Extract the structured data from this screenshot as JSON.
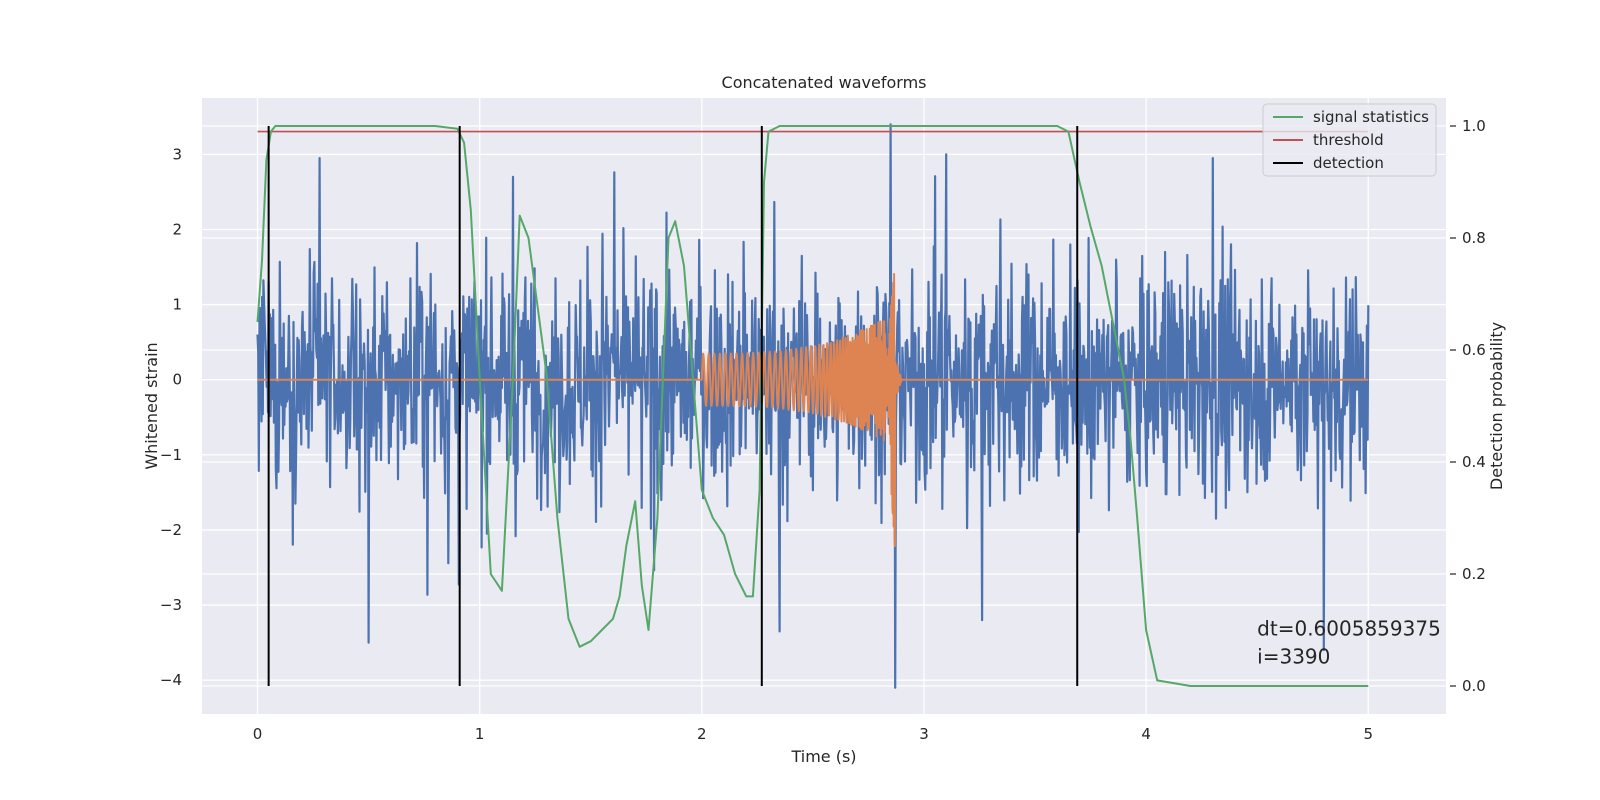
{
  "chart_data": {
    "type": "line",
    "title": "Concatenated waveforms",
    "xlabel": "Time (s)",
    "ylabel": "Whitened strain",
    "ylabel_right": "Detection probability",
    "xlim": [
      -0.25,
      5.35
    ],
    "ylim": [
      -4.45,
      3.75
    ],
    "ylim_right": [
      -0.05,
      1.05
    ],
    "x_ticks": [
      0,
      1,
      2,
      3,
      4,
      5
    ],
    "y_ticks": [
      -4,
      -3,
      -2,
      -1,
      0,
      1,
      2,
      3
    ],
    "y_ticks_right": [
      0.0,
      0.2,
      0.4,
      0.6,
      0.8,
      1.0
    ],
    "grid": true,
    "legend_position": "top-right",
    "legend": [
      {
        "name": "signal statistics",
        "color": "#55a868"
      },
      {
        "name": "threshold",
        "color": "#c44e52"
      },
      {
        "name": "detection",
        "color": "#000000"
      }
    ],
    "strain_noise": {
      "color": "#4c72b0",
      "x_range": [
        0,
        5
      ],
      "typical_amplitude": 1.0,
      "extremes": [
        {
          "x": 0.5,
          "y": -3.5
        },
        {
          "x": 2.85,
          "y": 3.4
        },
        {
          "x": 2.87,
          "y": -4.1
        },
        {
          "x": 2.35,
          "y": -3.35
        },
        {
          "x": 4.8,
          "y": -3.6
        },
        {
          "x": 1.15,
          "y": 2.7
        },
        {
          "x": 0.28,
          "y": 2.95
        },
        {
          "x": 3.1,
          "y": 3.0
        },
        {
          "x": 4.3,
          "y": 2.95
        }
      ]
    },
    "strain_signal": {
      "color": "#dd8452",
      "start": 2.0,
      "merger": 2.87,
      "end": 2.9,
      "amplitude_start": 0.35,
      "amplitude_peak_pos": 1.55,
      "amplitude_peak_neg": -2.25
    },
    "signal_statistics": {
      "color": "#55a868",
      "x": [
        0,
        0.02,
        0.04,
        0.06,
        0.08,
        0.1,
        0.2,
        0.5,
        0.8,
        0.9,
        0.93,
        0.96,
        1.0,
        1.05,
        1.1,
        1.15,
        1.18,
        1.22,
        1.3,
        1.35,
        1.4,
        1.45,
        1.5,
        1.55,
        1.6,
        1.63,
        1.66,
        1.7,
        1.73,
        1.76,
        1.8,
        1.85,
        1.88,
        1.92,
        1.96,
        2.0,
        2.05,
        2.1,
        2.15,
        2.2,
        2.23,
        2.26,
        2.28,
        2.3,
        2.35,
        2.5,
        3.0,
        3.6,
        3.65,
        3.7,
        3.75,
        3.8,
        3.85,
        3.9,
        3.93,
        3.96,
        4.0,
        4.05,
        4.2,
        4.5,
        5.0
      ],
      "y": [
        0.65,
        0.76,
        0.94,
        0.99,
        1.0,
        1.0,
        1.0,
        1.0,
        1.0,
        0.995,
        0.97,
        0.85,
        0.55,
        0.2,
        0.17,
        0.55,
        0.84,
        0.8,
        0.56,
        0.3,
        0.12,
        0.07,
        0.08,
        0.1,
        0.12,
        0.16,
        0.25,
        0.33,
        0.18,
        0.1,
        0.3,
        0.8,
        0.83,
        0.75,
        0.55,
        0.35,
        0.3,
        0.27,
        0.2,
        0.16,
        0.16,
        0.35,
        0.9,
        0.99,
        1.0,
        1.0,
        1.0,
        1.0,
        0.99,
        0.9,
        0.82,
        0.75,
        0.65,
        0.55,
        0.44,
        0.3,
        0.1,
        0.01,
        0.0,
        0.0,
        0.0
      ]
    },
    "threshold": {
      "color": "#c44e52",
      "value": 0.99,
      "x_range": [
        0,
        5
      ]
    },
    "detections": {
      "color": "#000000",
      "x": [
        0.05,
        0.91,
        2.27,
        3.69
      ],
      "y_range": [
        0.0,
        1.0
      ]
    },
    "annotation": {
      "lines": [
        "dt=0.6005859375",
        " i=3390"
      ],
      "x": 4.5,
      "y": 0.09
    }
  }
}
